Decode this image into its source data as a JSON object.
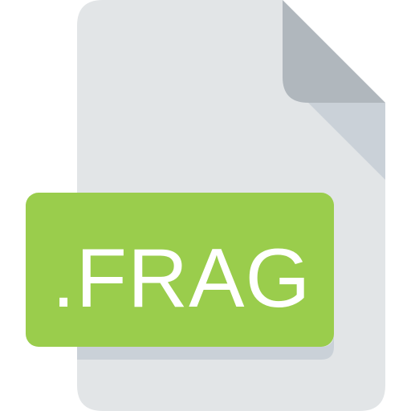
{
  "file_icon": {
    "extension_label": ".FRAG",
    "colors": {
      "page": "#E2E5E7",
      "fold": "#B0B7BD",
      "fold_shadow": "#CAD1D8",
      "badge": "#9ACD4C",
      "badge_shadow": "#CAD1D8",
      "label_text": "#FFFFFF"
    }
  }
}
